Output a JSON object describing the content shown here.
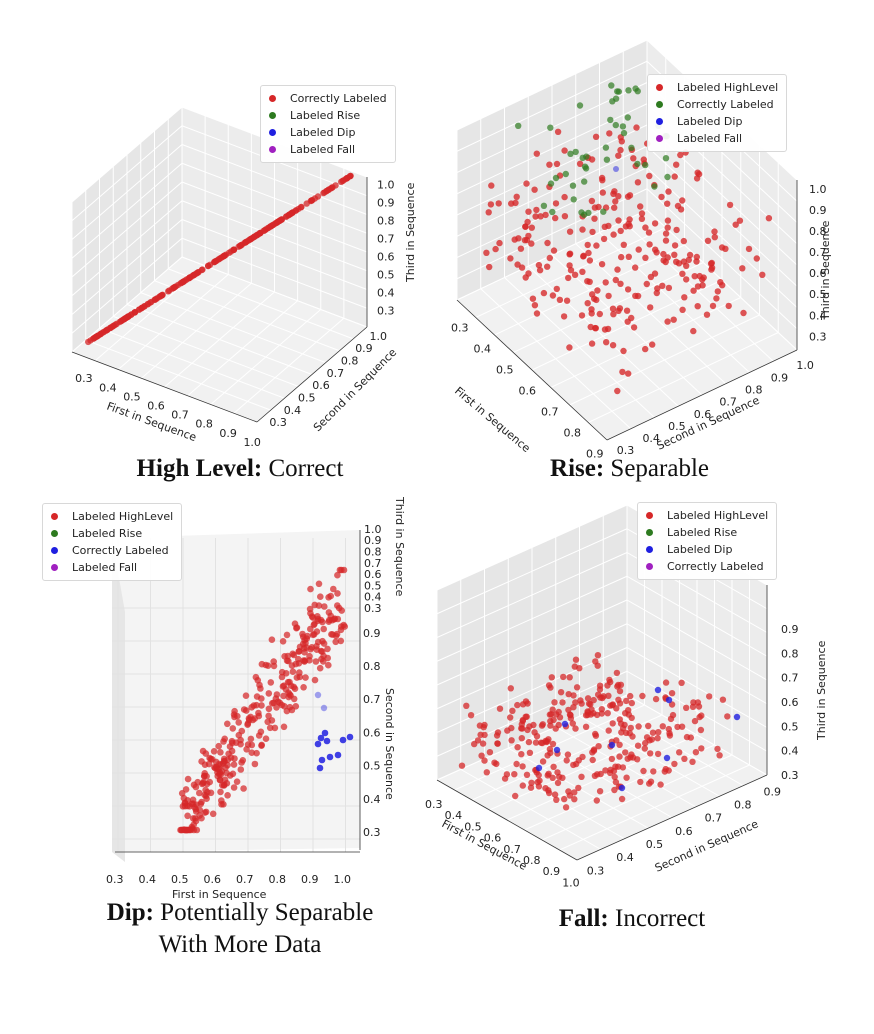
{
  "colors": {
    "red": "#d62728",
    "green": "#2d7a1f",
    "blue": "#1f1fe0",
    "purple": "#a020c0"
  },
  "chart_data": [
    {
      "type": "scatter",
      "dimensions": 3,
      "caption_bold": "High Level:",
      "caption_rest": "Correct",
      "xlabel": "First in Sequence",
      "ylabel": "Second in Sequence",
      "zlabel": "Third in Sequence",
      "x_ticks": [
        "0.3",
        "0.4",
        "0.5",
        "0.6",
        "0.7",
        "0.8",
        "0.9",
        "1.0"
      ],
      "y_ticks": [
        "0.3",
        "0.4",
        "0.5",
        "0.6",
        "0.7",
        "0.8",
        "0.9",
        "1.0"
      ],
      "z_ticks": [
        "0.3",
        "0.4",
        "0.5",
        "0.6",
        "0.7",
        "0.8",
        "0.9",
        "1.0"
      ],
      "legend": [
        {
          "label": "Correctly Labeled",
          "color": "#d62728"
        },
        {
          "label": "Labeled Rise",
          "color": "#2d7a1f"
        },
        {
          "label": "Labeled Dip",
          "color": "#1f1fe0"
        },
        {
          "label": "Labeled Fall",
          "color": "#a020c0"
        }
      ],
      "legend_position": "top-right"
    },
    {
      "type": "scatter",
      "dimensions": 3,
      "caption_bold": "Rise:",
      "caption_rest": "Separable",
      "xlabel": "First in Sequence",
      "ylabel": "Second in Sequence",
      "zlabel": "Third in Sequence",
      "x_ticks": [
        "0.3",
        "0.4",
        "0.5",
        "0.6",
        "0.7",
        "0.8",
        "0.9"
      ],
      "y_ticks": [
        "0.3",
        "0.4",
        "0.5",
        "0.6",
        "0.7",
        "0.8",
        "0.9",
        "1.0"
      ],
      "z_ticks": [
        "0.3",
        "0.4",
        "0.5",
        "0.6",
        "0.7",
        "0.8",
        "0.9",
        "1.0"
      ],
      "legend": [
        {
          "label": "Labeled HighLevel",
          "color": "#d62728"
        },
        {
          "label": "Correctly Labeled",
          "color": "#2d7a1f"
        },
        {
          "label": "Labeled Dip",
          "color": "#1f1fe0"
        },
        {
          "label": "Labeled Fall",
          "color": "#a020c0"
        }
      ],
      "legend_position": "top-right"
    },
    {
      "type": "scatter",
      "dimensions": 3,
      "caption_bold": "Dip:",
      "caption_rest": "Potentially Separable",
      "caption_line2": "With More Data",
      "xlabel": "First in Sequence",
      "ylabel": "Second in Sequence",
      "zlabel": "Third in Sequence",
      "x_ticks": [
        "0.3",
        "0.4",
        "0.5",
        "0.6",
        "0.7",
        "0.8",
        "0.9",
        "1.0"
      ],
      "y_ticks": [
        "0.3",
        "0.4",
        "0.5",
        "0.6",
        "0.7",
        "0.8",
        "0.9"
      ],
      "z_ticks": [
        "0.3",
        "0.4",
        "0.5",
        "0.6",
        "0.7",
        "0.8",
        "0.9",
        "1.0"
      ],
      "legend": [
        {
          "label": "Labeled HighLevel",
          "color": "#d62728"
        },
        {
          "label": "Labeled Rise",
          "color": "#2d7a1f"
        },
        {
          "label": "Correctly Labeled",
          "color": "#1f1fe0"
        },
        {
          "label": "Labeled Fall",
          "color": "#a020c0"
        }
      ],
      "legend_position": "top-left"
    },
    {
      "type": "scatter",
      "dimensions": 3,
      "caption_bold": "Fall:",
      "caption_rest": "Incorrect",
      "xlabel": "First in Sequence",
      "ylabel": "Second in Sequence",
      "zlabel": "Third in Sequence",
      "x_ticks": [
        "0.3",
        "0.4",
        "0.5",
        "0.6",
        "0.7",
        "0.8",
        "0.9",
        "1.0"
      ],
      "y_ticks": [
        "0.3",
        "0.4",
        "0.5",
        "0.6",
        "0.7",
        "0.8",
        "0.9"
      ],
      "z_ticks": [
        "0.3",
        "0.4",
        "0.5",
        "0.6",
        "0.7",
        "0.8",
        "0.9"
      ],
      "legend": [
        {
          "label": "Labeled HighLevel",
          "color": "#d62728"
        },
        {
          "label": "Labeled Rise",
          "color": "#2d7a1f"
        },
        {
          "label": "Labeled Dip",
          "color": "#1f1fe0"
        },
        {
          "label": "Correctly Labeled",
          "color": "#a020c0"
        }
      ],
      "legend_position": "top-right"
    }
  ]
}
